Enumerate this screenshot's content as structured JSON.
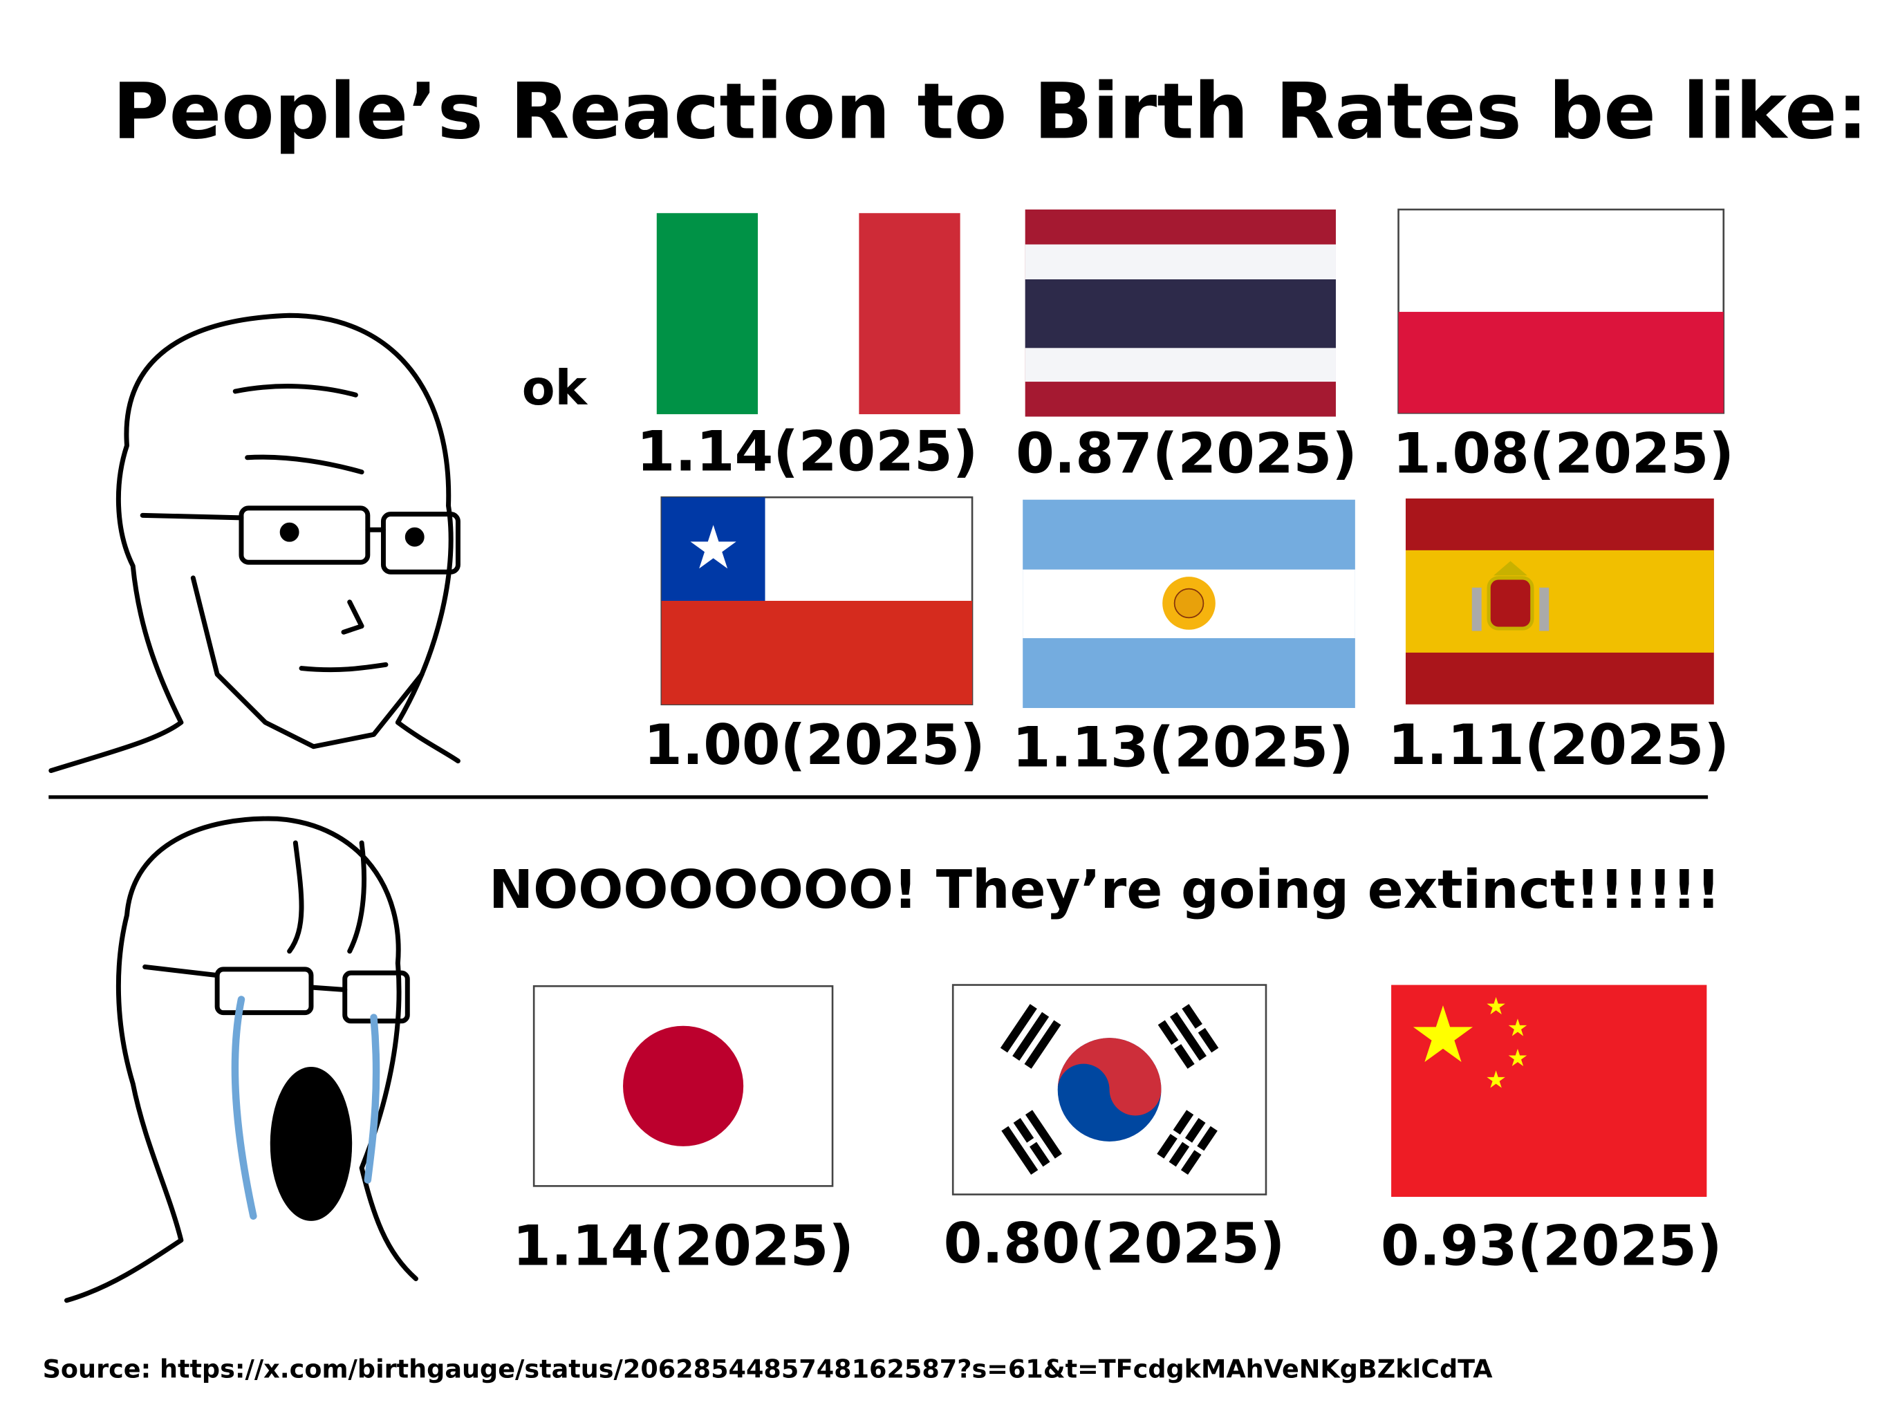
{
  "title": "People’s Reaction to Birth Rates be like:",
  "panels": [
    {
      "reaction": "ok",
      "flags": [
        {
          "label": "1.14(2025)"
        },
        {
          "label": "0.87(2025)"
        },
        {
          "label": "1.08(2025)"
        },
        {
          "label": "1.00(2025)"
        },
        {
          "label": "1.13(2025)"
        },
        {
          "label": "1.11(2025)"
        }
      ]
    },
    {
      "reaction": "NOOOOOOOO!  They’re going extinct!!!!!!",
      "flags": [
        {
          "label": "1.14(2025)"
        },
        {
          "label": "0.80(2025)"
        },
        {
          "label": "0.93(2025)"
        }
      ]
    }
  ],
  "source": "Source: https://x.com/birthgauge/status/2062854485748162587?s=61&t=TFcdgkMAhVeNKgBZklCdTA"
}
